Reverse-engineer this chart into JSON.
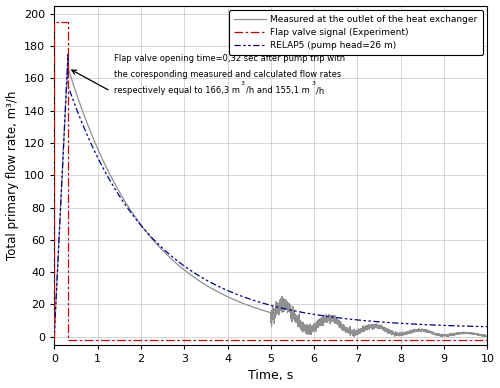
{
  "xlabel": "Time, s",
  "ylabel": "Total primary flow rate, m³/h",
  "xlim": [
    0,
    10
  ],
  "ylim": [
    -5,
    205
  ],
  "yticks": [
    0,
    20,
    40,
    60,
    80,
    100,
    120,
    140,
    160,
    180,
    200
  ],
  "xticks": [
    0,
    1,
    2,
    3,
    4,
    5,
    6,
    7,
    8,
    9,
    10
  ],
  "measured_color": "#909090",
  "flap_color": "#cc0000",
  "relap_color": "#00008B",
  "legend_measured": "Measured at the outlet of the heat exchanger",
  "legend_flap": "Flap valve signal (Experiment)",
  "legend_relap": "RELAP5 (pump head=26 m)",
  "grid_color": "#c8c8c8"
}
